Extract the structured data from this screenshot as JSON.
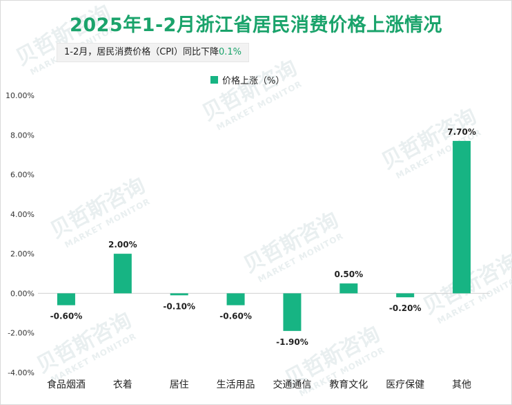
{
  "title": "2025年1-2月浙江省居民消费价格上涨情况",
  "subtitle": {
    "text": "1-2月，居民消费价格（CPI）同比下降",
    "highlight": "0.1%"
  },
  "watermark": {
    "cn": "贝哲斯咨询",
    "en": "MARKET MONITOR"
  },
  "colors": {
    "title": "#1aa36b",
    "bar": "#17b483",
    "highlight": "#1aa36b"
  },
  "chart_data": {
    "type": "bar",
    "categories": [
      "食品烟酒",
      "衣着",
      "居住",
      "生活用品",
      "交通通信",
      "教育文化",
      "医疗保健",
      "其他"
    ],
    "series": [
      {
        "name": "价格上涨（%）",
        "values": [
          -0.6,
          2.0,
          -0.1,
          -0.6,
          -1.9,
          0.5,
          -0.2,
          7.7
        ]
      }
    ],
    "value_labels": [
      "-0.60%",
      "2.00%",
      "-0.10%",
      "-0.60%",
      "-1.90%",
      "0.50%",
      "-0.20%",
      "7.70%"
    ],
    "ylim": [
      -4,
      10
    ],
    "yticks": [
      "-4.00%",
      "-2.00%",
      "0.00%",
      "2.00%",
      "4.00%",
      "6.00%",
      "8.00%",
      "10.00%"
    ],
    "ytick_values": [
      -4,
      -2,
      0,
      2,
      4,
      6,
      8,
      10
    ],
    "grid": false,
    "legend": "top-center"
  }
}
